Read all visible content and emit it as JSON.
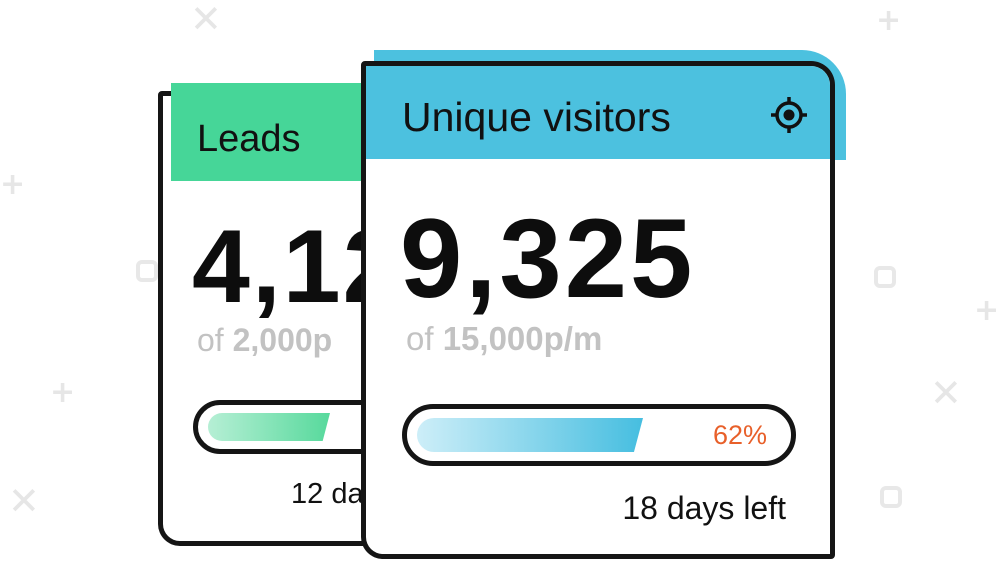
{
  "decorations": {
    "x_symbol": "✕",
    "plus_symbol": "+"
  },
  "leads_card": {
    "title": "Leads",
    "value": "4,12",
    "of_label": "of",
    "target": "2,000p",
    "progress_fraction": 0.42,
    "days_left": "12 da",
    "accent_color": "#46d698"
  },
  "visitors_card": {
    "title": "Unique visitors",
    "icon": "target-icon",
    "value": "9,325",
    "of_label": "of",
    "target": "15,000p/m",
    "progress_percent": 62,
    "progress_label": "62%",
    "days_left": "18 days left",
    "accent_color": "#4cc1df",
    "percent_color": "#e8602a"
  }
}
